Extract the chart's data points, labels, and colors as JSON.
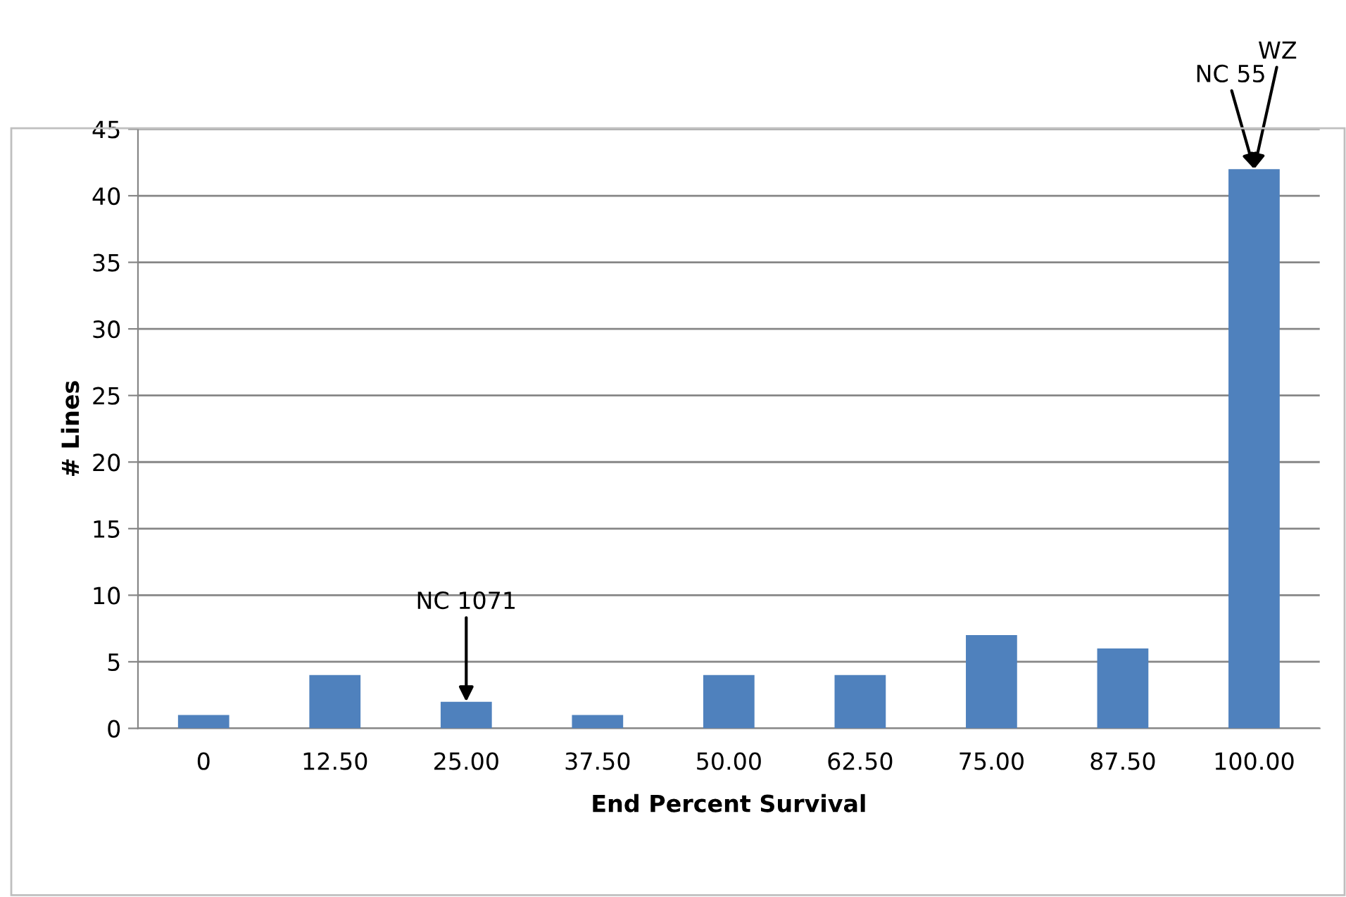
{
  "chart_data": {
    "type": "bar",
    "xlabel": "End Percent Survival",
    "ylabel": "# Lines",
    "categories": [
      "0",
      "12.50",
      "25.00",
      "37.50",
      "50.00",
      "62.50",
      "75.00",
      "87.50",
      "100.00"
    ],
    "values": [
      1,
      4,
      2,
      1,
      4,
      4,
      7,
      6,
      42
    ],
    "color": "#4f81bd",
    "ylim": [
      0,
      45
    ],
    "yticks": [
      0,
      5,
      10,
      15,
      20,
      25,
      30,
      35,
      40,
      45
    ],
    "grid": "y",
    "legend": false,
    "annotations": [
      {
        "text": "NC 1071",
        "x": "25.00",
        "y": 2
      },
      {
        "text": "NC 55",
        "x": "100.00",
        "y": 42
      },
      {
        "text": "WZ",
        "x": "100.00",
        "y": 42
      }
    ]
  }
}
